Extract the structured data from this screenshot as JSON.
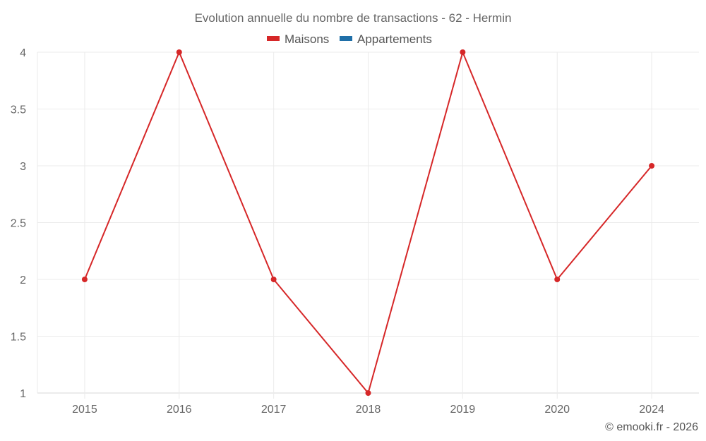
{
  "chart_data": {
    "type": "line",
    "title": "Evolution annuelle du nombre de transactions - 62 - Hermin",
    "categories": [
      "2015",
      "2016",
      "2017",
      "2018",
      "2019",
      "2020",
      "2024"
    ],
    "series": [
      {
        "name": "Maisons",
        "color": "#d62728",
        "values": [
          2,
          4,
          2,
          1,
          4,
          2,
          3
        ]
      },
      {
        "name": "Appartements",
        "color": "#1f6fa8",
        "values": []
      }
    ],
    "xlabel": "",
    "ylabel": "",
    "ylim": [
      1,
      4
    ],
    "yticks": [
      "1",
      "1.5",
      "2",
      "2.5",
      "3",
      "3.5",
      "4"
    ],
    "grid": true,
    "legend_position": "top"
  },
  "legend": [
    {
      "label": "Maisons",
      "color": "#d62728"
    },
    {
      "label": "Appartements",
      "color": "#1f6fa8"
    }
  ],
  "credit": "© emooki.fr - 2026"
}
